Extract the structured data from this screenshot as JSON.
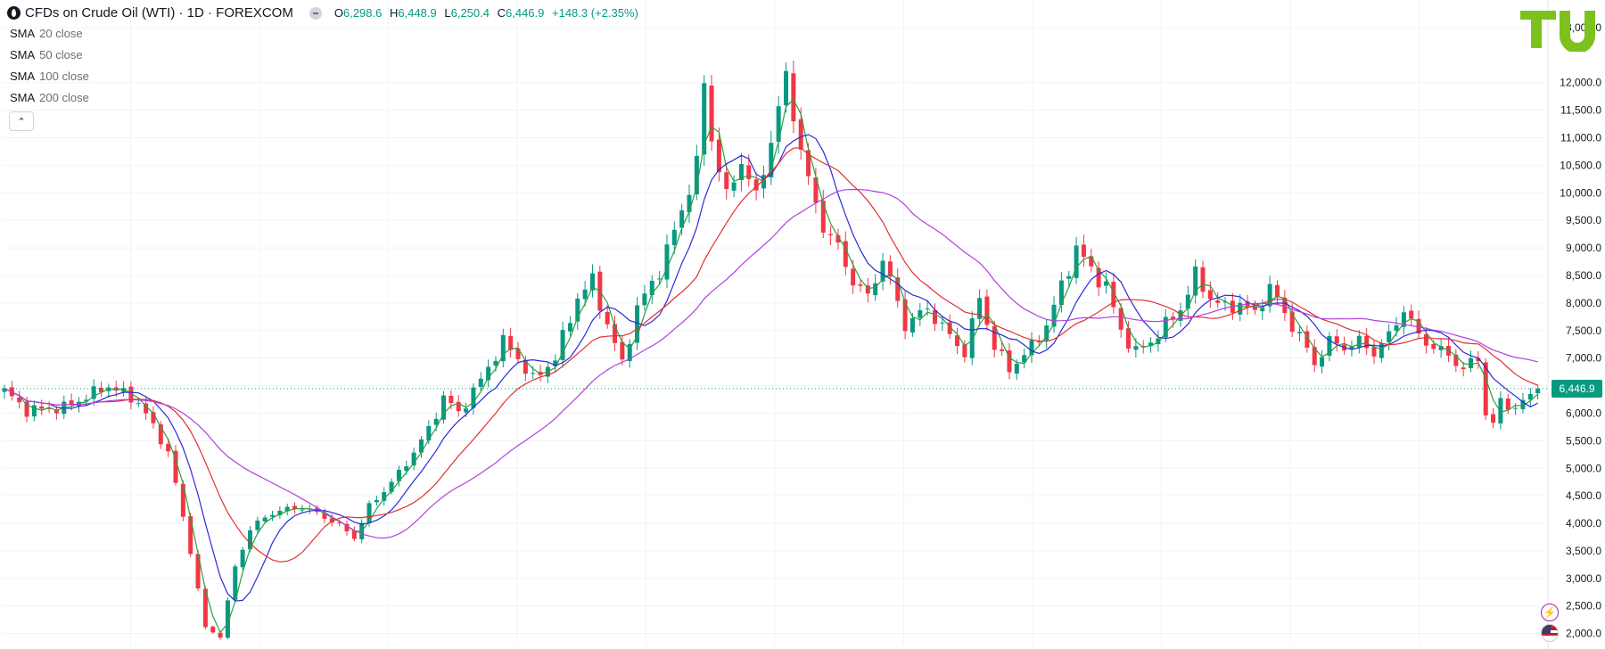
{
  "header": {
    "symbol_title": "CFDs on Crude Oil (WTI) · 1D · FOREXCOM",
    "ohlc": {
      "o_label": "O",
      "o_value": "6,298.6",
      "h_label": "H",
      "h_value": "6,448.9",
      "l_label": "L",
      "l_value": "6,250.4",
      "c_label": "C",
      "c_value": "6,446.9",
      "change": "+148.3 (+2.35%)"
    }
  },
  "indicators": [
    {
      "name": "SMA",
      "param": "20 close",
      "color": "#2e9e3e"
    },
    {
      "name": "SMA",
      "param": "50 close",
      "color": "#2a2ad9"
    },
    {
      "name": "SMA",
      "param": "100 close",
      "color": "#e23030"
    },
    {
      "name": "SMA",
      "param": "200 close",
      "color": "#b040e0"
    }
  ],
  "last_price": {
    "label": "6,446.9",
    "value": 6446.9,
    "color": "#089981"
  },
  "icons": {
    "symbol": "oil-drop-icon",
    "collapse": "chevron-up-icon",
    "logo": "tu-logo-icon",
    "side1": "lightning-icon",
    "side2": "us-flag-icon"
  },
  "colors": {
    "up": "#089981",
    "down": "#f23645"
  },
  "chart_data": {
    "type": "candlestick",
    "y_axis_ticks": [
      "13,000.0",
      "12,000.0",
      "11,500.0",
      "11,000.0",
      "10,500.0",
      "10,000.0",
      "9,500.0",
      "9,000.0",
      "8,500.0",
      "8,000.0",
      "7,500.0",
      "7,000.0",
      "6,500.0",
      "6,000.0",
      "5,500.0",
      "5,000.0",
      "4,500.0",
      "4,000.0",
      "3,500.0",
      "3,000.0",
      "2,500.0",
      "2,000.0"
    ],
    "y_axis_values": [
      13000,
      12000,
      11500,
      11000,
      10500,
      10000,
      9500,
      9000,
      8500,
      8000,
      7500,
      7000,
      6500,
      6000,
      5500,
      5000,
      4500,
      4000,
      3500,
      3000,
      2500,
      2000
    ],
    "ylim": [
      1800,
      13500
    ],
    "price_anchors": [
      [
        0,
        6400
      ],
      [
        3,
        6050
      ],
      [
        8,
        6100
      ],
      [
        14,
        6500
      ],
      [
        18,
        6200
      ],
      [
        22,
        5300
      ],
      [
        25,
        3500
      ],
      [
        27,
        2100
      ],
      [
        29,
        1950
      ],
      [
        31,
        3200
      ],
      [
        33,
        3900
      ],
      [
        36,
        4200
      ],
      [
        40,
        4300
      ],
      [
        44,
        4050
      ],
      [
        47,
        3750
      ],
      [
        49,
        4300
      ],
      [
        53,
        4900
      ],
      [
        57,
        5700
      ],
      [
        59,
        6300
      ],
      [
        61,
        6000
      ],
      [
        64,
        6600
      ],
      [
        67,
        7300
      ],
      [
        69,
        7000
      ],
      [
        71,
        6600
      ],
      [
        74,
        7000
      ],
      [
        77,
        8100
      ],
      [
        79,
        8400
      ],
      [
        81,
        7600
      ],
      [
        83,
        6900
      ],
      [
        85,
        7900
      ],
      [
        88,
        8600
      ],
      [
        90,
        9300
      ],
      [
        93,
        10500
      ],
      [
        94,
        12000
      ],
      [
        95,
        11000
      ],
      [
        97,
        9900
      ],
      [
        99,
        10600
      ],
      [
        101,
        9900
      ],
      [
        104,
        11500
      ],
      [
        105,
        12100
      ],
      [
        107,
        10800
      ],
      [
        108,
        10200
      ],
      [
        110,
        9400
      ],
      [
        112,
        9000
      ],
      [
        114,
        8400
      ],
      [
        116,
        8100
      ],
      [
        118,
        8800
      ],
      [
        119,
        8400
      ],
      [
        121,
        7600
      ],
      [
        124,
        7900
      ],
      [
        127,
        7400
      ],
      [
        129,
        7100
      ],
      [
        131,
        8100
      ],
      [
        133,
        7200
      ],
      [
        135,
        6800
      ],
      [
        138,
        7200
      ],
      [
        140,
        7600
      ],
      [
        142,
        8300
      ],
      [
        144,
        9000
      ],
      [
        146,
        8600
      ],
      [
        148,
        8300
      ],
      [
        150,
        7500
      ],
      [
        152,
        7100
      ],
      [
        154,
        7300
      ],
      [
        156,
        7600
      ],
      [
        158,
        7900
      ],
      [
        160,
        8500
      ],
      [
        162,
        8100
      ],
      [
        164,
        7900
      ],
      [
        166,
        8000
      ],
      [
        168,
        7800
      ],
      [
        170,
        8300
      ],
      [
        172,
        7800
      ],
      [
        174,
        7400
      ],
      [
        176,
        6900
      ],
      [
        178,
        7300
      ],
      [
        180,
        7200
      ],
      [
        182,
        7300
      ],
      [
        184,
        7100
      ],
      [
        186,
        7400
      ],
      [
        188,
        7900
      ],
      [
        190,
        7400
      ],
      [
        192,
        7200
      ],
      [
        194,
        7050
      ],
      [
        196,
        6800
      ],
      [
        198,
        7000
      ],
      [
        199,
        6000
      ],
      [
        200,
        5800
      ],
      [
        201,
        6200
      ],
      [
        203,
        6100
      ],
      [
        205,
        6300
      ],
      [
        206,
        6447
      ]
    ],
    "last_index": 206
  }
}
